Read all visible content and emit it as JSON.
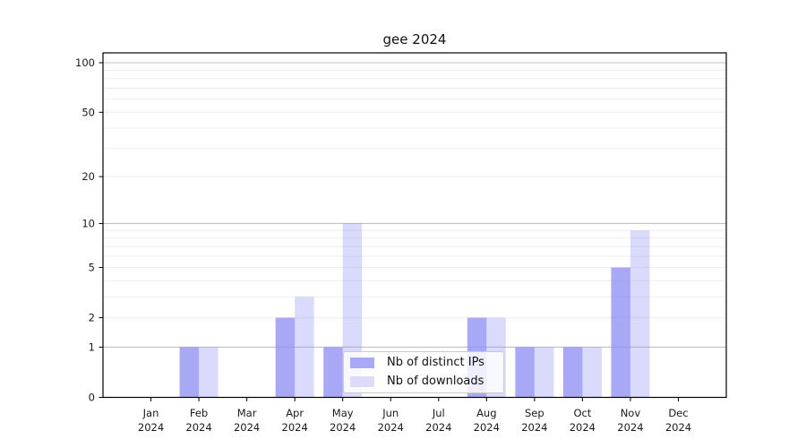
{
  "chart_data": {
    "type": "bar",
    "title": "gee 2024",
    "categories": [
      "Jan",
      "Feb",
      "Mar",
      "Apr",
      "May",
      "Jun",
      "Jul",
      "Aug",
      "Sep",
      "Oct",
      "Nov",
      "Dec"
    ],
    "x_year_label": "2024",
    "series": [
      {
        "name": "Nb of distinct IPs",
        "color": "#a9a9f8",
        "bar_fill": "#8f8ff5",
        "bar_opacity": 0.78,
        "values": [
          0,
          1,
          0,
          2,
          1,
          0,
          0,
          2,
          1,
          1,
          5,
          0
        ]
      },
      {
        "name": "Nb of downloads",
        "color": "#dcdcf9",
        "bar_fill": "#8f8ff5",
        "bar_opacity": 0.33,
        "values": [
          0,
          1,
          0,
          3,
          10,
          0,
          0,
          2,
          1,
          1,
          9,
          0
        ]
      }
    ],
    "xlabel": "",
    "ylabel": "",
    "yaxis": {
      "scale": "symlog",
      "tick_labels": [
        "0",
        "1",
        "2",
        "5",
        "10",
        "20",
        "50",
        "100"
      ],
      "tick_values": [
        0,
        1,
        2,
        5,
        10,
        20,
        50,
        100
      ],
      "major_grid": [
        1,
        10,
        100
      ],
      "ylim": [
        0,
        114
      ]
    },
    "grid": {
      "on": true,
      "major_color": "#c0c0c0",
      "minor_color": "#ededed"
    },
    "legend": {
      "position": "lower center",
      "entries": [
        "Nb of distinct IPs",
        "Nb of downloads"
      ]
    },
    "colors": {
      "axis": "#000000",
      "text": "#1a1a1a",
      "background": "#ffffff"
    }
  }
}
